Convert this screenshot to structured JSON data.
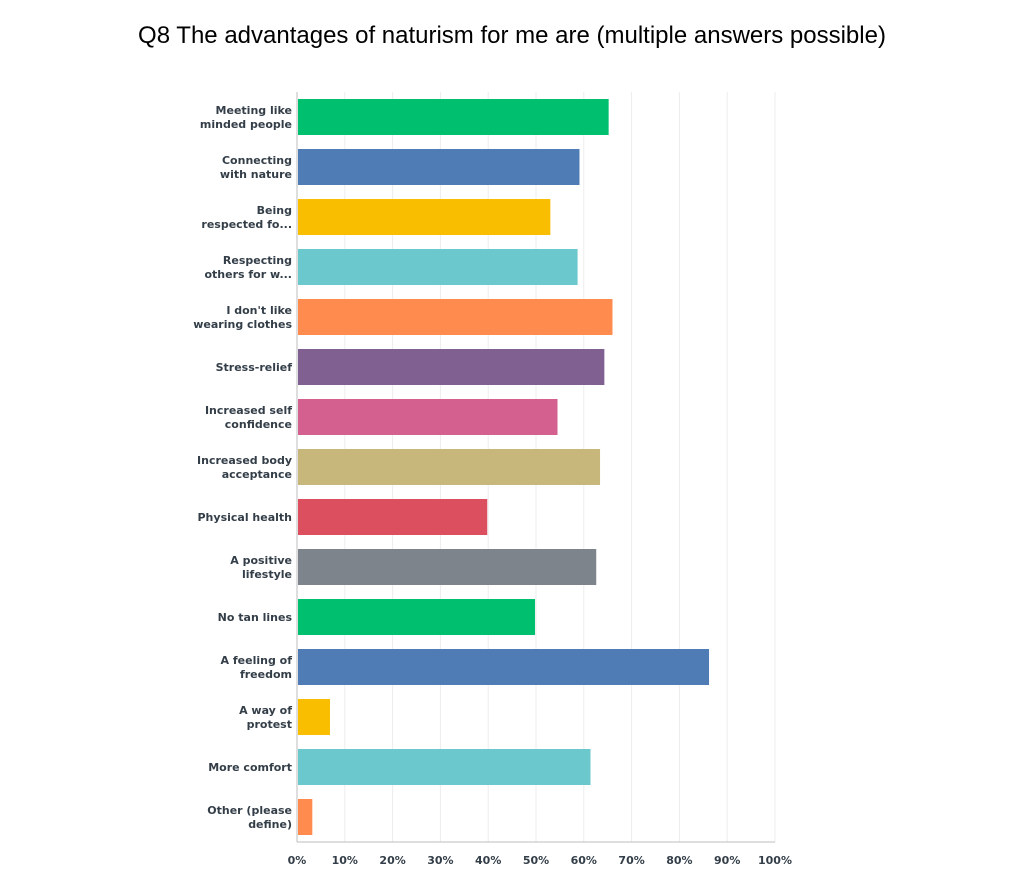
{
  "chart_data": {
    "type": "bar",
    "orientation": "horizontal",
    "title": "Q8 The advantages of naturism for me are (multiple answers possible)",
    "categories": [
      [
        "Meeting like",
        "minded people"
      ],
      [
        "Connecting",
        "with nature"
      ],
      [
        "Being",
        "respected fo..."
      ],
      [
        "Respecting",
        "others for w..."
      ],
      [
        "I don't like",
        "wearing clothes"
      ],
      [
        "Stress-relief"
      ],
      [
        "Increased self",
        "confidence"
      ],
      [
        "Increased body",
        "acceptance"
      ],
      [
        "Physical health"
      ],
      [
        "A positive",
        "lifestyle"
      ],
      [
        "No tan lines"
      ],
      [
        "A feeling of",
        "freedom"
      ],
      [
        "A way of",
        "protest"
      ],
      [
        "More comfort"
      ],
      [
        "Other (please",
        "define)"
      ]
    ],
    "values": [
      65.2,
      59.1,
      53.0,
      58.7,
      66.0,
      64.3,
      54.5,
      63.4,
      39.8,
      62.6,
      49.8,
      86.2,
      6.9,
      61.4,
      3.2
    ],
    "colors": [
      "#00bf6f",
      "#507cb6",
      "#f9be00",
      "#6bc8cd",
      "#ff8b4f",
      "#7f6091",
      "#d46090",
      "#c8b77a",
      "#db4f5f",
      "#7d848b",
      "#00bf6f",
      "#507cb6",
      "#f9be00",
      "#6bc8cd",
      "#ff8b4f"
    ],
    "xticks": [
      "0%",
      "10%",
      "20%",
      "30%",
      "40%",
      "50%",
      "60%",
      "70%",
      "80%",
      "90%",
      "100%"
    ],
    "xlim": [
      0,
      100
    ],
    "grid": true,
    "legend": "none"
  }
}
